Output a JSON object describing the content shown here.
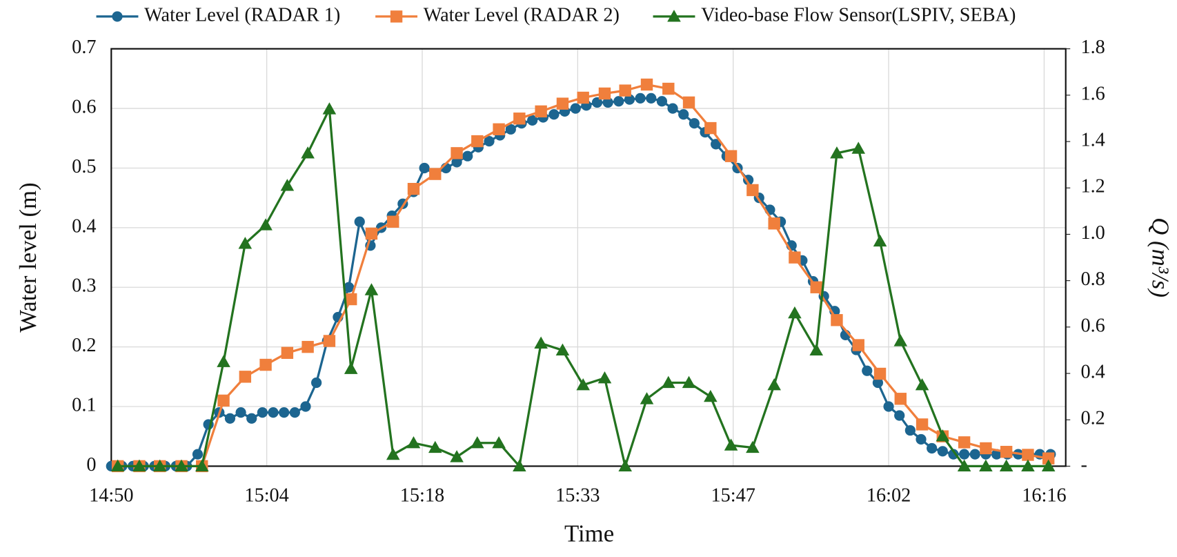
{
  "chart_data": {
    "type": "line",
    "xlabel": "Time",
    "ylabel": "Water level (m)",
    "y2label": "Q (m³/s)",
    "xlim": [
      890,
      978.4
    ],
    "xticks": [
      {
        "value": 890,
        "label": "14:50"
      },
      {
        "value": 904.4,
        "label": "15:04"
      },
      {
        "value": 918.8,
        "label": "15:18"
      },
      {
        "value": 933.2,
        "label": "15:33"
      },
      {
        "value": 947.6,
        "label": "15:47"
      },
      {
        "value": 962,
        "label": "16:02"
      },
      {
        "value": 976.4,
        "label": "16:16"
      }
    ],
    "ylim": [
      0,
      0.7
    ],
    "yticks": [
      0,
      0.1,
      0.2,
      0.3,
      0.4,
      0.5,
      0.6,
      0.7
    ],
    "y2lim": [
      0,
      1.8
    ],
    "y2ticks": [
      {
        "value": 0,
        "label": "-"
      },
      0.2,
      0.4,
      0.6,
      0.8,
      {
        "value": 1,
        "label": "1.0"
      },
      1.2,
      1.4,
      1.6,
      1.8
    ],
    "grid": true,
    "legend": "top",
    "series": [
      {
        "name": "Water Level (RADAR 1)",
        "color": "#1c6590",
        "marker": "circle",
        "x": [
          890,
          891,
          892,
          893,
          894,
          895,
          896,
          897,
          898,
          899,
          900,
          901,
          902,
          903,
          904,
          905,
          906,
          907,
          908,
          909,
          910,
          911,
          912,
          913,
          914,
          915,
          916,
          917,
          918,
          919,
          920,
          921,
          922,
          923,
          924,
          925,
          926,
          927,
          928,
          929,
          930,
          931,
          932,
          933,
          934,
          935,
          936,
          937,
          938,
          939,
          940,
          941,
          942,
          943,
          944,
          945,
          946,
          947,
          948,
          949,
          950,
          951,
          952,
          953,
          954,
          955,
          956,
          957,
          958,
          959,
          960,
          961,
          962,
          963,
          964,
          965,
          966,
          967,
          968,
          969,
          970,
          971,
          972,
          973,
          974,
          975,
          976,
          977
        ],
        "values": [
          0,
          0,
          0,
          0,
          0,
          0,
          0,
          0,
          0.02,
          0.07,
          0.09,
          0.08,
          0.09,
          0.08,
          0.09,
          0.09,
          0.09,
          0.09,
          0.1,
          0.14,
          0.21,
          0.25,
          0.3,
          0.41,
          0.37,
          0.4,
          0.42,
          0.44,
          0.46,
          0.5,
          0.49,
          0.5,
          0.51,
          0.52,
          0.535,
          0.545,
          0.555,
          0.565,
          0.575,
          0.58,
          0.585,
          0.59,
          0.595,
          0.6,
          0.605,
          0.61,
          0.61,
          0.612,
          0.615,
          0.617,
          0.617,
          0.612,
          0.6,
          0.59,
          0.575,
          0.56,
          0.54,
          0.52,
          0.5,
          0.48,
          0.45,
          0.43,
          0.41,
          0.37,
          0.345,
          0.31,
          0.285,
          0.26,
          0.22,
          0.195,
          0.16,
          0.14,
          0.1,
          0.085,
          0.06,
          0.045,
          0.03,
          0.025,
          0.02,
          0.02,
          0.02,
          0.02,
          0.02,
          0.02,
          0.02,
          0.02,
          0.02,
          0.02
        ]
      },
      {
        "name": "Water Level (RADAR 2)",
        "color": "#f07f3c",
        "marker": "square",
        "x": [
          890.6,
          892.6,
          894.5,
          896.5,
          898.4,
          900.4,
          902.4,
          904.3,
          906.3,
          908.2,
          910.2,
          912.2,
          914.1,
          916.1,
          918.0,
          920.0,
          922.0,
          923.9,
          925.9,
          927.8,
          929.8,
          931.8,
          933.7,
          935.7,
          937.6,
          939.6,
          941.6,
          943.5,
          945.5,
          947.4,
          949.4,
          951.4,
          953.3,
          955.3,
          957.2,
          959.2,
          961.2,
          963.1,
          965.1,
          967.0,
          969.0,
          971.0,
          972.9,
          974.9,
          976.8
        ],
        "values": [
          0,
          0,
          0,
          0,
          0,
          0.11,
          0.15,
          0.17,
          0.19,
          0.2,
          0.21,
          0.28,
          0.39,
          0.41,
          0.465,
          0.49,
          0.525,
          0.545,
          0.565,
          0.583,
          0.595,
          0.608,
          0.618,
          0.625,
          0.63,
          0.64,
          0.633,
          0.61,
          0.567,
          0.52,
          0.463,
          0.407,
          0.35,
          0.3,
          0.245,
          0.203,
          0.155,
          0.113,
          0.07,
          0.05,
          0.04,
          0.03,
          0.024,
          0.019,
          0.013
        ]
      },
      {
        "name": "Video-base Flow Sensor(LSPIV, SEBA)",
        "color": "#23731f",
        "marker": "triangle",
        "axis": "y2",
        "x": [
          890.6,
          892.6,
          894.5,
          896.5,
          898.4,
          900.4,
          902.4,
          904.3,
          906.3,
          908.2,
          910.2,
          912.2,
          914.1,
          916.1,
          918.0,
          920.0,
          922.0,
          923.9,
          925.9,
          927.8,
          929.8,
          931.8,
          933.7,
          935.7,
          937.6,
          939.6,
          941.6,
          943.5,
          945.5,
          947.4,
          949.4,
          951.4,
          953.3,
          955.3,
          957.2,
          959.2,
          961.2,
          963.1,
          965.1,
          967.0,
          969.0,
          971.0,
          972.9,
          974.9,
          976.8
        ],
        "values": [
          0,
          0,
          0,
          0,
          0,
          0.45,
          0.96,
          1.04,
          1.21,
          1.35,
          1.54,
          0.42,
          0.76,
          0.05,
          0.1,
          0.08,
          0.04,
          0.1,
          0.1,
          0,
          0.53,
          0.5,
          0.35,
          0.38,
          0,
          0.29,
          0.36,
          0.36,
          0.3,
          0.09,
          0.08,
          0.35,
          0.66,
          0.5,
          1.35,
          1.37,
          0.97,
          0.54,
          0.35,
          0.13,
          0,
          0,
          0,
          0,
          0
        ]
      }
    ]
  }
}
